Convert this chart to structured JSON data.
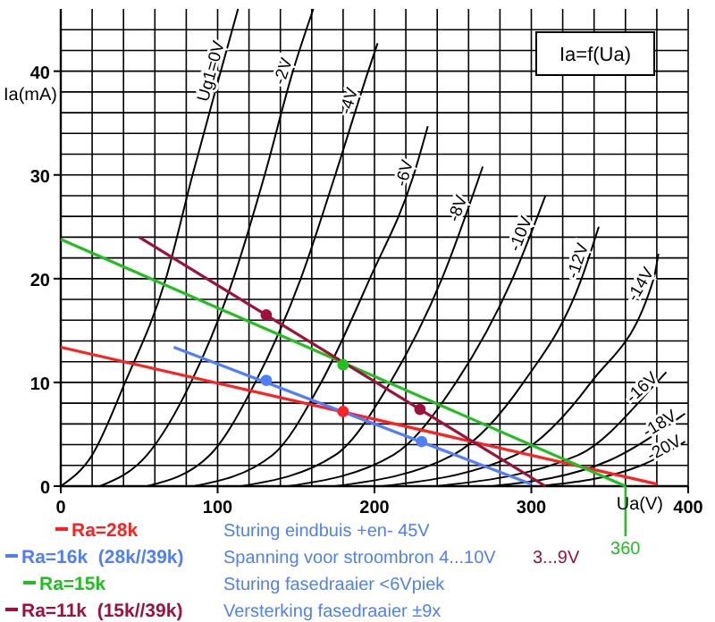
{
  "chart_data": {
    "type": "line",
    "title": "Ia=f(Ua)",
    "xlabel": "Ua(V)",
    "ylabel": "Ia(mA)",
    "xlim": [
      0,
      400
    ],
    "ylim": [
      0,
      46
    ],
    "xticks": [
      0,
      {
        "value": 20,
        "label": null
      },
      {
        "value": 40,
        "label": null
      },
      {
        "value": 60,
        "label": null
      },
      {
        "value": 80,
        "label": null
      },
      100,
      {
        "value": 120,
        "label": null
      },
      {
        "value": 140,
        "label": null
      },
      {
        "value": 160,
        "label": null
      },
      {
        "value": 180,
        "label": null
      },
      200,
      {
        "value": 220,
        "label": null
      },
      {
        "value": 240,
        "label": null
      },
      {
        "value": 260,
        "label": null
      },
      {
        "value": 280,
        "label": null
      },
      300,
      {
        "value": 320,
        "label": null
      },
      {
        "value": 340,
        "label": null
      },
      {
        "value": 360,
        "label": null
      },
      {
        "value": 380,
        "label": null
      },
      400
    ],
    "yticks": [
      0,
      {
        "value": 2,
        "label": null
      },
      {
        "value": 4,
        "label": null
      },
      {
        "value": 6,
        "label": null
      },
      {
        "value": 8,
        "label": null
      },
      10,
      {
        "value": 12,
        "label": null
      },
      {
        "value": 14,
        "label": null
      },
      {
        "value": 16,
        "label": null
      },
      {
        "value": 18,
        "label": null
      },
      20,
      {
        "value": 22,
        "label": null
      },
      {
        "value": 24,
        "label": null
      },
      {
        "value": 26,
        "label": null
      },
      {
        "value": 28,
        "label": null
      },
      30,
      {
        "value": 32,
        "label": null
      },
      {
        "value": 34,
        "label": null
      },
      {
        "value": 36,
        "label": null
      },
      {
        "value": 38,
        "label": null
      },
      40,
      {
        "value": 42,
        "label": null
      },
      {
        "value": 44,
        "label": null
      }
    ],
    "grid": true,
    "legend": "bottom",
    "marker": "none",
    "line_style": "solid",
    "series": [
      {
        "color": "#000000",
        "x": [
          0,
          20,
          41,
          67,
          84,
          102,
          113
        ],
        "values": [
          0,
          3,
          10,
          20,
          30,
          40,
          46
        ]
      },
      {
        "color": "#000000",
        "x": [
          25,
          55,
          83,
          110,
          130,
          148,
          161
        ],
        "values": [
          0,
          3,
          10,
          20,
          30,
          40,
          46
        ]
      },
      {
        "color": "#000000",
        "x": [
          55,
          95,
          124,
          153,
          175,
          196,
          202
        ],
        "values": [
          0,
          3,
          10,
          20,
          30,
          40,
          42.7
        ]
      },
      {
        "color": "#000000",
        "x": [
          85,
          135,
          166,
          197,
          225,
          234
        ],
        "values": [
          0,
          3,
          10,
          20,
          30,
          34.7
        ]
      },
      {
        "color": "#000000",
        "x": [
          115,
          175,
          210,
          243,
          269
        ],
        "values": [
          0,
          3,
          10,
          20,
          30.8
        ]
      },
      {
        "color": "#000000",
        "x": [
          145,
          212,
          252,
          288,
          309
        ],
        "values": [
          0,
          3,
          10,
          20,
          28
        ]
      },
      {
        "color": "#000000",
        "x": [
          175,
          250,
          295,
          332,
          343
        ],
        "values": [
          0,
          3,
          10,
          20,
          25
        ]
      },
      {
        "color": "#000000",
        "x": [
          205,
          290,
          338,
          378,
          381
        ],
        "values": [
          0,
          3,
          10,
          20,
          22.4
        ]
      },
      {
        "color": "#000000",
        "x": [
          240,
          330,
          380,
          386
        ],
        "values": [
          0,
          3,
          10,
          11
        ]
      },
      {
        "color": "#000000",
        "x": [
          275,
          350,
          398
        ],
        "values": [
          0,
          2.5,
          7
        ]
      },
      {
        "color": "#000000",
        "x": [
          305,
          370,
          398
        ],
        "values": [
          0,
          2,
          4.3
        ]
      },
      {
        "name": "Ra=28k",
        "color": "#ff2020",
        "x": [
          0,
          380
        ],
        "values": [
          13.4,
          0.2
        ]
      },
      {
        "name": "Ra=16k  (28k//39k)",
        "color": "#4f7fff",
        "x": [
          72,
          300
        ],
        "values": [
          13.4,
          0.2
        ]
      },
      {
        "name": "Ra=15k",
        "color": "#20c020",
        "x": [
          0,
          360
        ],
        "values": [
          23.8,
          0
        ]
      },
      {
        "name": "Ra=11k  (15k//39k)",
        "color": "#a0103a",
        "x": [
          50,
          309
        ],
        "values": [
          24,
          0
        ]
      },
      {
        "type": "scatter",
        "marker": "circle",
        "color": "#ff2020",
        "x": [
          180
        ],
        "values": [
          7.2
        ]
      },
      {
        "type": "scatter",
        "marker": "circle",
        "color": "#4f7fff",
        "x": [
          131,
          230
        ],
        "values": [
          10.2,
          4.3
        ]
      },
      {
        "type": "scatter",
        "marker": "circle",
        "color": "#20c020",
        "x": [
          180
        ],
        "values": [
          11.7
        ]
      },
      {
        "type": "scatter",
        "marker": "circle",
        "color": "#a0103a",
        "x": [
          131,
          229
        ],
        "values": [
          16.5,
          7.4
        ]
      }
    ],
    "ref_lines": [
      {
        "axis": "x",
        "value": 360,
        "label": "360",
        "color": "#20c020"
      }
    ],
    "annotations": [
      "Ug1=0V",
      "-2V",
      "-4V",
      "-6V",
      "-8V",
      "-10V",
      "-12V",
      "-14V",
      "-16V",
      "-18V",
      "-20V",
      "Sturing eindbuis +en- 45V",
      "Spanning voor stroombron 4...10V",
      "3...9V",
      "Sturing fasedraaier <6Vpiek",
      "Versterking fasedraaier ±9x"
    ]
  }
}
